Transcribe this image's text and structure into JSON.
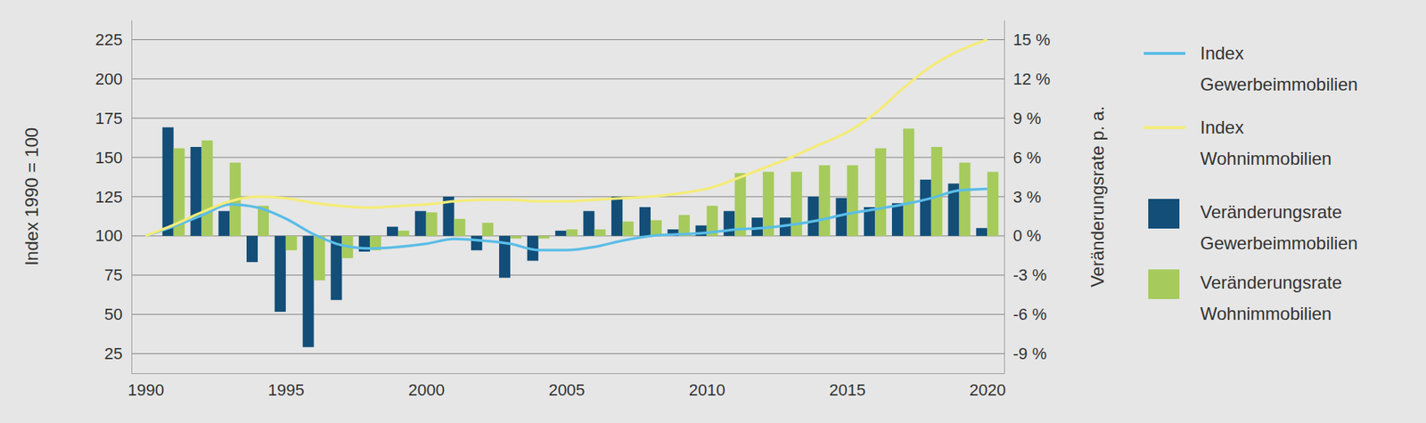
{
  "chart_data": {
    "type": "combo",
    "y_label": "Index 1990 = 100",
    "y2_label": "Veränderungsrate p. a.",
    "x": [
      1990,
      1991,
      1992,
      1993,
      1994,
      1995,
      1996,
      1997,
      1998,
      1999,
      2000,
      2001,
      2002,
      2003,
      2004,
      2005,
      2006,
      2007,
      2008,
      2009,
      2010,
      2011,
      2012,
      2013,
      2014,
      2015,
      2016,
      2017,
      2018,
      2019,
      2020
    ],
    "xlim": [
      1989.5,
      2020.6
    ],
    "xticks": [
      1990,
      1995,
      2000,
      2005,
      2010,
      2015,
      2020
    ],
    "ylim": [
      12.5,
      237.5
    ],
    "yticks": [
      25,
      50,
      75,
      100,
      125,
      150,
      175,
      200,
      225
    ],
    "y2lim": [
      -10.5,
      16.5
    ],
    "y2ticks": [
      {
        "value": -9,
        "label": "-9 %"
      },
      {
        "value": -6,
        "label": "-6 %"
      },
      {
        "value": -3,
        "label": "-3 %"
      },
      {
        "value": 0,
        "label": "0 %"
      },
      {
        "value": 3,
        "label": "3 %"
      },
      {
        "value": 6,
        "label": "6 %"
      },
      {
        "value": 9,
        "label": "9 %"
      },
      {
        "value": 12,
        "label": "12 %"
      },
      {
        "value": 15,
        "label": "15 %"
      }
    ],
    "grid": true,
    "legend": "right",
    "series": [
      {
        "name": "Index Gewerbeimmobilien",
        "type": "line",
        "axis": "y",
        "color": "#5bbde6",
        "values": [
          100,
          106,
          113,
          120,
          118,
          111,
          101,
          94,
          92,
          93,
          95,
          98,
          97,
          95,
          91,
          91,
          93,
          97,
          100,
          101,
          102,
          104,
          105,
          107,
          110,
          114,
          117,
          120,
          124,
          129,
          130
        ]
      },
      {
        "name": "Index Wohnimmobilien",
        "type": "line",
        "axis": "y",
        "color": "#f4ec78",
        "values": [
          100,
          107,
          115,
          122,
          125,
          124,
          121,
          119,
          118,
          119,
          120,
          122,
          123,
          123,
          122,
          122,
          123,
          124,
          125,
          127,
          130,
          136,
          143,
          150,
          158,
          166,
          178,
          194,
          208,
          218,
          225
        ]
      },
      {
        "name": "Veränderungsrate Gewerbeimmobilien",
        "type": "bar",
        "axis": "y2",
        "color": "#124e78",
        "values": [
          null,
          8.3,
          6.8,
          1.9,
          -2.0,
          -5.8,
          -8.5,
          -4.9,
          -1.2,
          0.7,
          1.9,
          3.0,
          -1.1,
          -3.2,
          -1.9,
          0.4,
          1.9,
          3.0,
          2.2,
          0.5,
          0.8,
          1.9,
          1.4,
          1.4,
          3.0,
          2.9,
          2.2,
          2.5,
          4.3,
          4.0,
          0.6
        ]
      },
      {
        "name": "Veränderungsrate Wohnimmobilien",
        "type": "bar",
        "axis": "y2",
        "color": "#a6cb5c",
        "values": [
          null,
          6.7,
          7.3,
          5.6,
          2.3,
          -1.1,
          -3.4,
          -1.7,
          -1.1,
          0.4,
          1.8,
          1.3,
          1.0,
          -0.2,
          -0.2,
          0.5,
          0.5,
          1.1,
          1.2,
          1.6,
          2.3,
          4.8,
          4.9,
          4.9,
          5.4,
          5.4,
          6.7,
          8.2,
          6.8,
          5.6,
          4.9
        ]
      }
    ]
  }
}
